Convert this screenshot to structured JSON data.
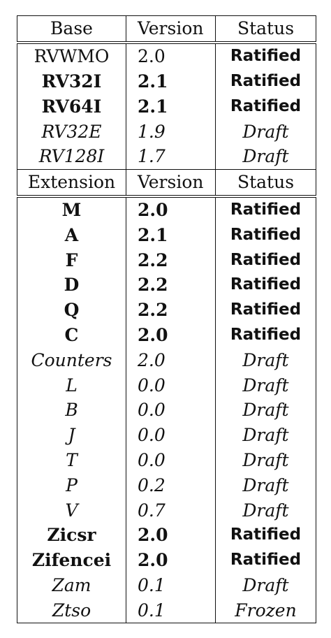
{
  "base_header": {
    "col1": "Base",
    "col2": "Version",
    "col3": "Status"
  },
  "base_rows": [
    {
      "name": "RVWMO",
      "version": "2.0",
      "status": "Ratified",
      "style": "plain-status-bold"
    },
    {
      "name": "RV32I",
      "version": "2.1",
      "status": "Ratified",
      "style": "ratified"
    },
    {
      "name": "RV64I",
      "version": "2.1",
      "status": "Ratified",
      "style": "ratified"
    },
    {
      "name": "RV32E",
      "version": "1.9",
      "status": "Draft",
      "style": "draft"
    },
    {
      "name": "RV128I",
      "version": "1.7",
      "status": "Draft",
      "style": "draft"
    }
  ],
  "extension_header": {
    "col1": "Extension",
    "col2": "Version",
    "col3": "Status"
  },
  "extension_rows": [
    {
      "name": "M",
      "version": "2.0",
      "status": "Ratified",
      "style": "ratified"
    },
    {
      "name": "A",
      "version": "2.1",
      "status": "Ratified",
      "style": "ratified"
    },
    {
      "name": "F",
      "version": "2.2",
      "status": "Ratified",
      "style": "ratified"
    },
    {
      "name": "D",
      "version": "2.2",
      "status": "Ratified",
      "style": "ratified"
    },
    {
      "name": "Q",
      "version": "2.2",
      "status": "Ratified",
      "style": "ratified"
    },
    {
      "name": "C",
      "version": "2.0",
      "status": "Ratified",
      "style": "ratified"
    },
    {
      "name": "Counters",
      "version": "2.0",
      "status": "Draft",
      "style": "draft"
    },
    {
      "name": "L",
      "version": "0.0",
      "status": "Draft",
      "style": "draft"
    },
    {
      "name": "B",
      "version": "0.0",
      "status": "Draft",
      "style": "draft"
    },
    {
      "name": "J",
      "version": "0.0",
      "status": "Draft",
      "style": "draft"
    },
    {
      "name": "T",
      "version": "0.0",
      "status": "Draft",
      "style": "draft"
    },
    {
      "name": "P",
      "version": "0.2",
      "status": "Draft",
      "style": "draft"
    },
    {
      "name": "V",
      "version": "0.7",
      "status": "Draft",
      "style": "draft"
    },
    {
      "name": "Zicsr",
      "version": "2.0",
      "status": "Ratified",
      "style": "ratified"
    },
    {
      "name": "Zifencei",
      "version": "2.0",
      "status": "Ratified",
      "style": "ratified"
    },
    {
      "name": "Zam",
      "version": "0.1",
      "status": "Draft",
      "style": "draft"
    },
    {
      "name": "Ztso",
      "version": "0.1",
      "status": "Frozen",
      "style": "frozen"
    }
  ]
}
